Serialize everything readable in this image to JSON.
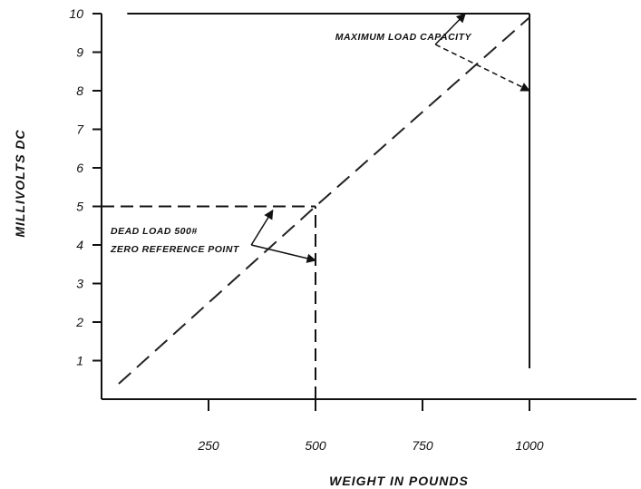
{
  "chart_data": {
    "type": "line",
    "title": "",
    "xlabel": "WEIGHT IN POUNDS",
    "ylabel": "MILLIVOLTS DC",
    "xlim": [
      0,
      1250
    ],
    "ylim": [
      0,
      10
    ],
    "x_ticks": [
      250,
      500,
      750,
      1000
    ],
    "y_ticks": [
      1,
      2,
      3,
      4,
      5,
      6,
      7,
      8,
      9,
      10
    ],
    "grid": false,
    "series": [
      {
        "x": [
          40,
          500,
          1000
        ],
        "y": [
          0.4,
          5,
          9.9
        ]
      }
    ],
    "reference_lines": [
      {
        "x": [
          0,
          500
        ],
        "y": [
          5,
          5
        ]
      },
      {
        "x": [
          500,
          500
        ],
        "y": [
          0,
          5
        ]
      },
      {
        "x": [
          60,
          1000
        ],
        "y": [
          10,
          10
        ]
      },
      {
        "x": [
          1000,
          1000
        ],
        "y": [
          0.8,
          10
        ]
      }
    ],
    "annotations": [
      {
        "lines": [
          "MAXIMUM LOAD CAPACITY"
        ],
        "anchor": [
          780,
          9.2
        ],
        "arrows_to": [
          [
            850,
            10
          ],
          [
            1000,
            8
          ]
        ]
      },
      {
        "lines": [
          "DEAD LOAD 500#",
          "ZERO REFERENCE POINT"
        ],
        "anchor": [
          350,
          4
        ],
        "arrows_to": [
          [
            400,
            4.9
          ],
          [
            500,
            3.6
          ]
        ]
      }
    ],
    "colors": {
      "axis": "#111111",
      "series": "#222222"
    }
  }
}
